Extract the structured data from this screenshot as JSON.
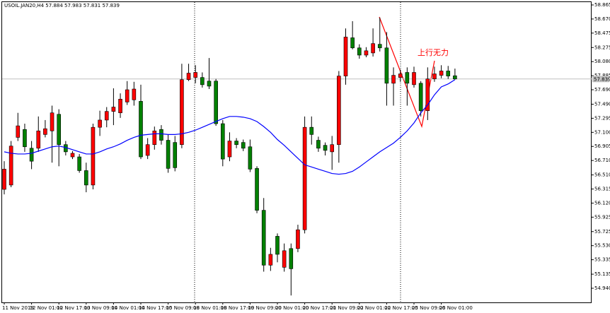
{
  "chart_data": {
    "type": "candlestick",
    "title": "USOIL.JAN20,H4  57.884 57.983 57.831 57.839",
    "categories": [
      "11 Nov 2019",
      null,
      null,
      null,
      "12 Nov 01:00",
      null,
      null,
      null,
      "12 Nov 17:00",
      null,
      null,
      null,
      "13 Nov 09:00",
      null,
      null,
      null,
      "14 Nov 01:00",
      null,
      null,
      null,
      "14 Nov 17:00",
      null,
      null,
      null,
      "15 Nov 09:00",
      null,
      null,
      null,
      "18 Nov 01:00",
      null,
      null,
      null,
      "18 Nov 17:00",
      null,
      null,
      null,
      "19 Nov 09:00",
      null,
      null,
      null,
      "20 Nov 01:00",
      null,
      null,
      null,
      "20 Nov 17:00",
      null,
      null,
      null,
      "21 Nov 09:00",
      null,
      null,
      null,
      "22 Nov 01:00",
      null,
      null,
      null,
      "22 Nov 17:00",
      null,
      null,
      null,
      "25 Nov 09:00",
      null,
      null,
      null,
      "26 Nov 01:00",
      null,
      null
    ],
    "open": [
      56.31,
      56.37,
      57.03,
      57.14,
      56.88,
      56.88,
      57.07,
      57.12,
      57.35,
      56.93,
      56.76,
      56.76,
      56.57,
      56.37,
      57.17,
      57.27,
      57.39,
      57.37,
      57.52,
      57.55,
      57.53,
      56.78,
      56.93,
      57.14,
      56.99,
      56.96,
      56.93,
      57.83,
      57.86,
      57.86,
      57.81,
      57.81,
      57.22,
      56.76,
      56.98,
      56.96,
      56.9,
      56.6,
      56.02,
      55.26,
      55.66,
      55.23,
      55.49,
      55.49,
      55.75,
      57.17,
      56.99,
      56.92,
      56.83,
      56.93,
      57.88,
      58.41,
      58.27,
      58.17,
      58.2,
      58.32,
      58.27,
      57.78,
      57.86,
      57.93,
      57.76,
      57.78,
      57.4,
      57.84,
      57.89,
      57.95,
      57.884
    ],
    "high": [
      56.7,
      56.98,
      57.37,
      57.22,
      56.98,
      57.32,
      57.27,
      57.47,
      57.42,
      56.98,
      56.84,
      56.8,
      56.68,
      57.22,
      57.4,
      57.45,
      57.71,
      57.64,
      57.81,
      57.8,
      57.76,
      57.02,
      57.18,
      57.2,
      57.07,
      57.05,
      58.05,
      58.05,
      58.03,
      57.93,
      58.13,
      57.84,
      57.27,
      57.1,
      57.02,
      57.0,
      57.0,
      56.63,
      56.19,
      55.5,
      55.7,
      55.56,
      55.56,
      55.82,
      57.32,
      57.32,
      57.04,
      56.96,
      57.05,
      57.95,
      58.54,
      58.64,
      58.32,
      58.28,
      58.54,
      58.69,
      58.49,
      58.0,
      57.97,
      58.0,
      58.01,
      57.81,
      58.0,
      58.01,
      58.03,
      58.02,
      57.983
    ],
    "low": [
      56.24,
      56.34,
      56.98,
      56.83,
      56.59,
      56.83,
      57.03,
      56.68,
      56.63,
      56.78,
      56.73,
      56.54,
      56.27,
      56.31,
      57.05,
      57.17,
      57.2,
      57.3,
      57.48,
      57.47,
      56.73,
      56.73,
      56.86,
      56.93,
      56.54,
      56.56,
      56.88,
      57.81,
      57.78,
      57.72,
      57.7,
      57.19,
      56.63,
      56.7,
      56.88,
      56.84,
      56.55,
      55.98,
      55.17,
      55.18,
      55.3,
      55.17,
      54.84,
      55.44,
      55.7,
      56.93,
      56.83,
      56.78,
      56.58,
      56.68,
      57.76,
      58.25,
      58.12,
      58.14,
      58.15,
      58.22,
      57.47,
      57.47,
      57.8,
      57.47,
      57.72,
      57.32,
      57.27,
      57.8,
      57.85,
      57.84,
      57.831
    ],
    "close": [
      56.59,
      56.91,
      57.19,
      56.9,
      56.7,
      57.12,
      57.15,
      57.37,
      56.93,
      56.83,
      56.81,
      56.57,
      56.37,
      57.17,
      57.27,
      57.39,
      57.45,
      57.56,
      57.69,
      57.7,
      56.76,
      56.93,
      57.12,
      56.99,
      56.6,
      56.61,
      57.83,
      57.92,
      57.93,
      57.76,
      57.74,
      57.22,
      56.73,
      56.98,
      56.93,
      56.88,
      56.59,
      56.02,
      55.26,
      55.41,
      55.41,
      55.46,
      55.21,
      55.75,
      57.17,
      57.07,
      56.88,
      56.85,
      56.93,
      57.88,
      58.42,
      58.27,
      58.17,
      58.23,
      58.33,
      58.27,
      57.78,
      57.89,
      57.91,
      57.78,
      57.93,
      57.4,
      57.84,
      57.91,
      57.95,
      57.88,
      57.839
    ],
    "up_color": "#ff0000",
    "down_color": "#008000",
    "overlay": {
      "color": "#0000ff",
      "values": [
        56.83,
        56.81,
        56.8,
        56.8,
        56.81,
        56.84,
        56.87,
        56.9,
        56.91,
        56.89,
        56.86,
        56.83,
        56.8,
        56.8,
        56.83,
        56.87,
        56.9,
        56.94,
        56.99,
        57.03,
        57.06,
        57.07,
        57.08,
        57.08,
        57.07,
        57.07,
        57.08,
        57.1,
        57.13,
        57.17,
        57.21,
        57.25,
        57.29,
        57.32,
        57.32,
        57.31,
        57.29,
        57.25,
        57.18,
        57.1,
        57.0,
        56.92,
        56.83,
        56.74,
        56.65,
        56.62,
        56.59,
        56.56,
        56.53,
        56.52,
        56.53,
        56.56,
        56.62,
        56.69,
        56.76,
        56.83,
        56.89,
        56.95,
        57.03,
        57.12,
        57.23,
        57.37,
        57.48,
        57.62,
        57.73,
        57.77,
        57.83
      ]
    },
    "last_price": 57.839,
    "annotation": "上行无力",
    "ylim": [
      54.744,
      58.904
    ],
    "yticks": [
      58.865,
      {
        "value": 58.67,
        "label": "58.670"
      },
      58.475,
      58.275,
      {
        "value": 58.08,
        "label": "58.080"
      },
      57.885,
      {
        "value": 57.69,
        "label": "57.690"
      },
      {
        "value": 57.49,
        "label": "57.490"
      },
      57.295,
      {
        "value": 57.1,
        "label": "57.100"
      },
      56.905,
      {
        "value": 56.71,
        "label": "56.710"
      },
      {
        "value": 56.51,
        "label": "56.510"
      },
      56.315,
      {
        "value": 56.12,
        "label": "56.120"
      },
      55.925,
      55.725,
      {
        "value": 55.53,
        "label": "55.530"
      },
      55.335,
      55.135,
      {
        "value": 54.94,
        "label": "54.940"
      }
    ],
    "grid": false
  }
}
